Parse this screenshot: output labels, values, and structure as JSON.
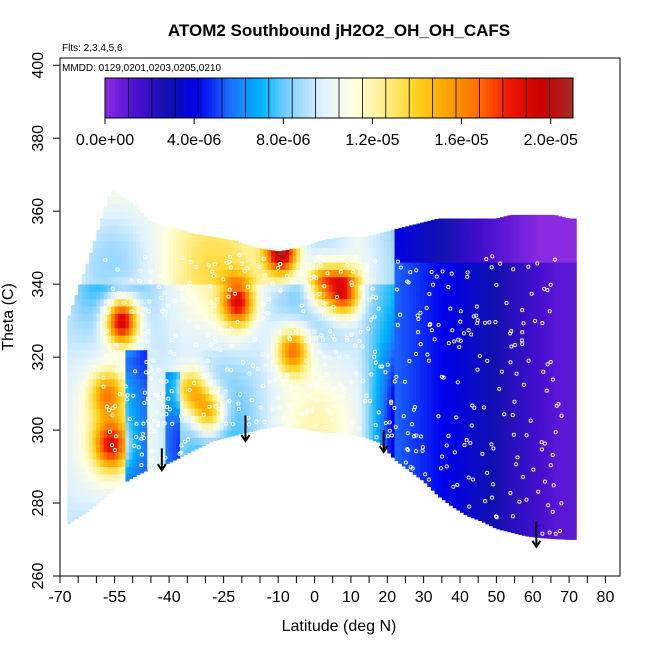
{
  "chart_data": {
    "type": "heatmap",
    "title": "ATOM2 Southbound jH2O2_OH_OH_CAFS",
    "subtitle_flights": "Flts: 2,3,4,5,6",
    "subtitle_dates": "MMDD: 0129,0201,0203,0205,0210",
    "xlabel": "Latitude (deg N)",
    "ylabel": "Theta (C)",
    "xlim": [
      -70,
      84
    ],
    "ylim": [
      260,
      402
    ],
    "x_ticks": [
      -70,
      -55,
      -40,
      -25,
      -10,
      0,
      10,
      20,
      30,
      40,
      50,
      60,
      70,
      80
    ],
    "x_minor_ticks": [
      -65,
      -60,
      -50,
      -45,
      -35,
      -30,
      -20,
      -15,
      -5,
      5,
      15,
      25,
      35,
      45,
      55,
      65,
      75
    ],
    "y_ticks": [
      260,
      280,
      300,
      320,
      340,
      360,
      380,
      400
    ],
    "colorbar": {
      "min": 0,
      "max": 2.1e-05,
      "tick_values": [
        0,
        4e-06,
        8e-06,
        1.2e-05,
        1.6e-05,
        2e-05
      ],
      "tick_labels": [
        "0.0e+00",
        "4.0e-06",
        "8.0e-06",
        "1.2e-05",
        "1.6e-05",
        "2.0e-05"
      ],
      "colors": [
        "#8a2be2",
        "#4a0fd0",
        "#1010b0",
        "#0000ee",
        "#1e6fff",
        "#00b4ff",
        "#8fd4ff",
        "#dff2ff",
        "#ffffe0",
        "#ffee88",
        "#ffd21e",
        "#ffa200",
        "#ff6a00",
        "#ee1400",
        "#c80000",
        "#a52a2a"
      ],
      "boundaries": 20
    },
    "profile": {
      "lat": [
        -68,
        -62,
        -56,
        -50,
        -45,
        -40,
        -34,
        -28,
        -22,
        -16,
        -10,
        -4,
        2,
        8,
        14,
        18,
        22,
        26,
        30,
        34,
        38,
        42,
        46,
        50,
        54,
        58,
        62,
        66,
        70,
        72
      ],
      "theta_floor": [
        274,
        278,
        283,
        287,
        289.5,
        291,
        294,
        297,
        298.5,
        300,
        301,
        300.5,
        299.5,
        299,
        298,
        296.5,
        292,
        289,
        286,
        282,
        279,
        276.5,
        275,
        273,
        272,
        271,
        270.5,
        270.2,
        270,
        270
      ],
      "theta_top": [
        330,
        347,
        366,
        362,
        357,
        356,
        354,
        353,
        352,
        350,
        349,
        350,
        352,
        353,
        353,
        354,
        355,
        356,
        357,
        358,
        358,
        358,
        358,
        358,
        359,
        359,
        359,
        359,
        358,
        358
      ]
    },
    "hot_spots": [
      {
        "lat": -53,
        "theta": 330,
        "value": 2e-05
      },
      {
        "lat": -9,
        "theta": 349,
        "value": 2e-05
      },
      {
        "lat": 8,
        "theta": 338,
        "value": 1.9e-05
      },
      {
        "lat": -21,
        "theta": 335,
        "value": 1.7e-05
      },
      {
        "lat": -6,
        "theta": 322,
        "value": 1.6e-05
      },
      {
        "lat": -34,
        "theta": 311,
        "value": 1.5e-05
      },
      {
        "lat": -56,
        "theta": 296,
        "value": 1.6e-05
      },
      {
        "lat": -29,
        "theta": 305,
        "value": 1.6e-05
      },
      {
        "lat": 2,
        "theta": 340,
        "value": 1.6e-05
      },
      {
        "lat": -57,
        "theta": 310,
        "value": 1.4e-05
      }
    ],
    "arrows": [
      {
        "lat": -42,
        "theta_top": 295,
        "theta_bottom": 289
      },
      {
        "lat": -19,
        "theta_top": 304,
        "theta_bottom": 297
      },
      {
        "lat": 19,
        "theta_top": 300,
        "theta_bottom": 294
      },
      {
        "lat": 61,
        "theta_top": 275,
        "theta_bottom": 268
      }
    ]
  },
  "colors": {
    "background": "#ffffff",
    "axis": "#000000",
    "marker": "#ffffff",
    "arrow": "#000000"
  }
}
